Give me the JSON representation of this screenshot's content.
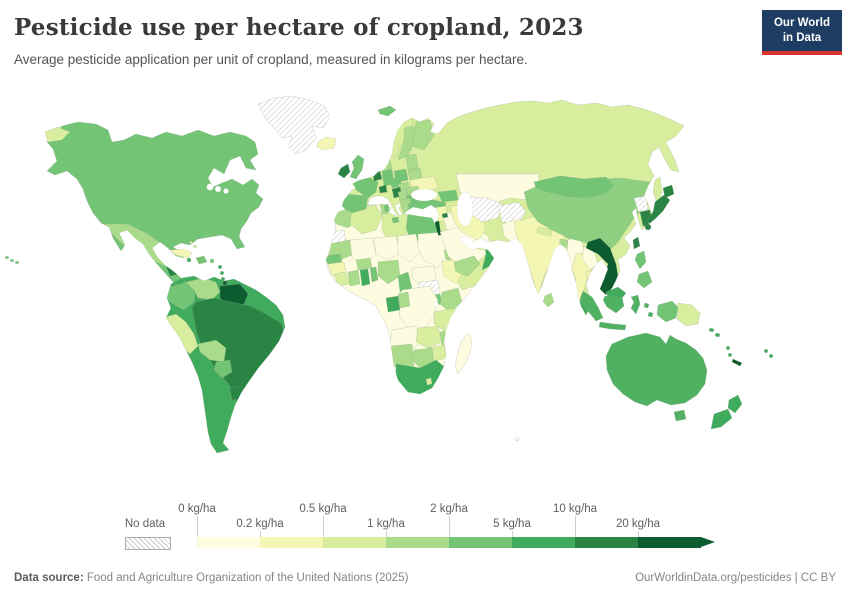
{
  "header": {
    "title": "Pesticide use per hectare of cropland, 2023",
    "subtitle": "Average pesticide application per unit of cropland, measured in kilograms per hectare.",
    "logo": {
      "line1": "Our World",
      "line2": "in Data",
      "bg": "#1d3d63",
      "accent": "#d8352e"
    }
  },
  "footer": {
    "source_prefix": "Data source:",
    "source_text": " Food and Agriculture Organization of the United Nations (2025)",
    "link": "OurWorldinData.org/pesticides",
    "separator": " | ",
    "license": "CC BY"
  },
  "chart_data": {
    "type": "choropleth-map",
    "title": "Pesticide use per hectare of cropland, 2023",
    "unit": "kg/ha",
    "year": 2023,
    "legend": {
      "no_data_label": "No data",
      "tick_labels": [
        "0 kg/ha",
        "0.2 kg/ha",
        "0.5 kg/ha",
        "1 kg/ha",
        "2 kg/ha",
        "5 kg/ha",
        "10 kg/ha",
        "20 kg/ha"
      ],
      "colors": [
        "#fdfce1",
        "#f4f7b4",
        "#d8ee9e",
        "#a9db8b",
        "#74c476",
        "#41ab5d",
        "#2a8444",
        "#0d5c30"
      ]
    },
    "palette": {
      "band1": "#fdfce1",
      "band2": "#f4f7b4",
      "band3": "#d8ee9e",
      "band4": "#a9db8b",
      "band45": "#8ecf82",
      "band5": "#74c476",
      "band56": "#50b163",
      "band6": "#41ab5d",
      "band7": "#2a8444",
      "band8": "#0d5c30"
    },
    "regions": {
      "north_america": "band5",
      "south_america": "band6",
      "africa": "band1",
      "eurasia": "band3",
      "australia": "band56",
      "tasmania": "band56",
      "greenland": "nodata",
      "iceland": "band2",
      "svalbard": "band5",
      "chukotka": "band3",
      "hawaii": "band5",
      "mexico": "band4",
      "guatemala": "band7",
      "belize": "band3",
      "honduras": "band5",
      "nicaragua": "band4",
      "costa_rica": "band7",
      "panama": "band6",
      "cuba": "band2",
      "hispaniola": "band5",
      "jamaica": "band6",
      "puerto_rico": "band5",
      "lesser_antilles": "band6",
      "trinidad": "band8",
      "bahamas": "band3",
      "colombia": "band5",
      "venezuela": "band4",
      "guyanas": "band8",
      "ecuador": "band6",
      "peru": "band3",
      "brazil": "band7",
      "bolivia": "band4",
      "paraguay": "band5",
      "uruguay": "band7",
      "morocco": "band4",
      "western_sahara": "nodata",
      "algeria": "band3",
      "tunisia": "band4",
      "libya": "band3",
      "egypt": "band5",
      "mauritania": "band4",
      "mali": "band1",
      "niger": "band1",
      "chad": "band1",
      "sudan": "band1",
      "senegal": "band5",
      "guinea": "band2",
      "sierra_leone_liberia": "band3",
      "ivory_coast": "band4",
      "ghana": "band6",
      "togo_benin": "band5",
      "burkina_faso": "band4",
      "nigeria": "band4",
      "cameroon": "band5",
      "central_african_republic": "band1",
      "ethiopia": "band2",
      "somalia": "band3",
      "south_sudan": "nodata",
      "eritrea": "band4",
      "djibouti": "band8",
      "uganda": "band5",
      "kenya": "band4",
      "drc": "band1",
      "gabon": "band6",
      "congo": "band4",
      "tanzania": "band3",
      "angola": "band1",
      "zambia": "band3",
      "malawi": "band4",
      "mozambique": "band3",
      "zimbabwe": "band3",
      "botswana": "band4",
      "namibia": "band4",
      "south_africa": "band6",
      "lesotho": "band3",
      "madagascar": "band1",
      "norway": "band3",
      "sweden": "band4",
      "finland": "band4",
      "denmark": "band4",
      "uk": "band5",
      "ireland": "band7",
      "portugal": "band5",
      "spain": "band5",
      "france": "band5",
      "netherlands_belgium": "band7",
      "germany": "band5",
      "switzerland": "band7",
      "italy": "band5",
      "sicily": "band5",
      "sardinia": "band5",
      "austria_czechia": "band5",
      "poland": "band5",
      "baltics": "band4",
      "belarus": "band4",
      "ukraine": "band2",
      "hungary": "band4",
      "romania": "band4",
      "balkans": "band4",
      "croatia": "band7",
      "bulgaria": "band5",
      "greece": "band4",
      "turkey": "band5",
      "caucasus": "band5",
      "cyprus": "band7",
      "syria": "band2",
      "israel": "band8",
      "iraq": "band1",
      "saudi_arabia": "band1",
      "yemen": "band4",
      "oman": "band6",
      "uae": "band3",
      "qatar": "band8",
      "iran": "band2",
      "kazakhstan": "band1",
      "uzbekistan_turkmenistan": "nodata",
      "afghanistan": "nodata",
      "pakistan": "band1",
      "india": "band2",
      "nepal": "band3",
      "bangladesh": "band4",
      "sri_lanka": "band4",
      "myanmar": "band1",
      "thailand": "band2",
      "laos": "band1",
      "cambodia": "band2",
      "vietnam": "band8",
      "malaysia_peninsula": "band6",
      "china": "band45",
      "mongolia": "band5",
      "north_korea": "nodata",
      "south_korea": "band7",
      "sakhalin": "band3",
      "hokkaido": "band7",
      "honshu": "band7",
      "kyushu": "band7",
      "taiwan": "band7",
      "luzon": "band5",
      "mindanao": "band5",
      "sumatra": "band56",
      "java": "band56",
      "borneo_malaysia": "band6",
      "borneo_indonesia": "band56",
      "sulawesi": "band56",
      "moluccas": "band56",
      "west_papua": "band5",
      "papua_new_guinea": "band3",
      "solomon_islands": "band6",
      "vanuatu": "band6",
      "new_caledonia": "band8",
      "fiji": "band6",
      "new_zealand_north": "band6",
      "new_zealand_south": "band6",
      "kerguelen": "nodata"
    }
  }
}
